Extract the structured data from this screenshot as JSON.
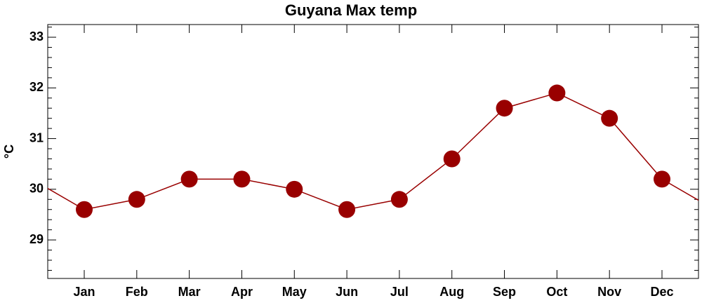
{
  "chart_data": {
    "type": "line",
    "title": "Guyana Max temp",
    "ylabel": "°C",
    "categories": [
      "Jan",
      "Feb",
      "Mar",
      "Apr",
      "May",
      "Jun",
      "Jul",
      "Aug",
      "Sep",
      "Oct",
      "Nov",
      "Dec"
    ],
    "series": [
      {
        "name": "Max temp",
        "color": "#990000",
        "values": [
          29.6,
          29.8,
          30.2,
          30.2,
          30.0,
          29.6,
          29.8,
          30.6,
          31.6,
          31.9,
          31.4,
          30.2
        ]
      }
    ],
    "ylim": [
      28.24,
      33.25
    ],
    "yticks": [
      29,
      30,
      31,
      32,
      33
    ]
  }
}
